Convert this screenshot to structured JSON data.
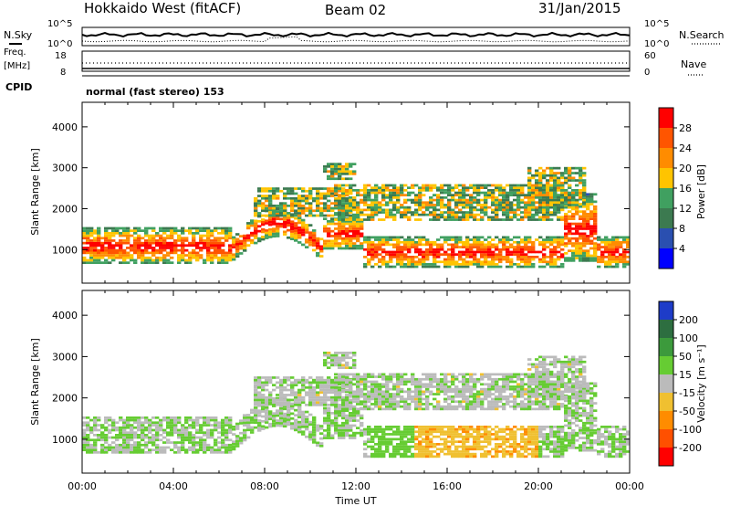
{
  "header": {
    "title": "Hokkaido West (fitACF)",
    "beam": "Beam 02",
    "date": "31/Jan/2015"
  },
  "status_panels": {
    "nsky_label": "N.Sky",
    "nsearch_label": "N.Search",
    "noise_ticks": [
      "10^5",
      "10^0"
    ],
    "freq_label": "Freq.",
    "freq_unit": "[MHz]",
    "freq_ticks": [
      "18",
      "8"
    ],
    "nave_ticks": [
      "60",
      "0"
    ],
    "nave_label": "Nave",
    "cpid_label": "CPID",
    "cpid_value": "normal (fast stereo) 153"
  },
  "chart_data": [
    {
      "type": "heatmap",
      "name": "power",
      "ylabel": "Slant Range [km]",
      "ylim": [
        180,
        4600
      ],
      "yticks": [
        1000,
        2000,
        3000,
        4000
      ],
      "xlim_hours": [
        0,
        24
      ],
      "colorbar_label": "Power [dB]",
      "colorbar_ticks": [
        "28",
        "24",
        "20",
        "16",
        "12",
        "8",
        "4"
      ],
      "colorbar_colors": [
        "#ff0000",
        "#ff5500",
        "#ff8c00",
        "#ffc400",
        "#40a060",
        "#3c7a50",
        "#2a4fb0",
        "#0000ff"
      ]
    },
    {
      "type": "heatmap",
      "name": "velocity",
      "ylabel": "Slant Range [km]",
      "ylim": [
        180,
        4600
      ],
      "yticks": [
        1000,
        2000,
        3000,
        4000
      ],
      "xlim_hours": [
        0,
        24
      ],
      "colorbar_label": "Velocity [m s⁻¹]",
      "colorbar_ticks": [
        "200",
        "100",
        "50",
        "15",
        "-15",
        "-50",
        "-100",
        "-200"
      ],
      "colorbar_colors": [
        "#1e3cc8",
        "#2d6e40",
        "#3c9a3c",
        "#66cc33",
        "#bbbbbb",
        "#f0c030",
        "#ff8c00",
        "#ff5000",
        "#ff0000"
      ]
    }
  ],
  "x_axis": {
    "ticks": [
      "00:00",
      "04:00",
      "08:00",
      "12:00",
      "16:00",
      "20:00",
      "00:00"
    ],
    "label": "Time UT"
  }
}
